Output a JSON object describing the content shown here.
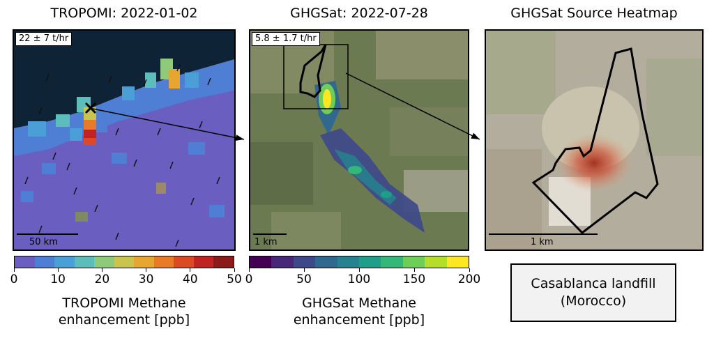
{
  "panels": {
    "tropomi": {
      "title": "TROPOMI: 2022-01-02",
      "rate": "22 ± 7 t/hr",
      "scale": "50 km"
    },
    "ghgsat": {
      "title": "GHGSat: 2022-07-28",
      "rate": "5.8 ± 1.7 t/hr",
      "scale": "1 km"
    },
    "heatmap": {
      "title": "GHGSat Source Heatmap",
      "scale": "1 km"
    }
  },
  "colorbars": {
    "tropomi": {
      "ticks": [
        "0",
        "10",
        "20",
        "30",
        "40",
        "50"
      ],
      "label_line1": "TROPOMI Methane",
      "label_line2": "enhancement [ppb]",
      "colors": [
        "#6a5fc1",
        "#4e7fd4",
        "#4aa0d6",
        "#5cbdbb",
        "#8fc97a",
        "#c9c44e",
        "#e6a630",
        "#e97a27",
        "#dc4a24",
        "#c12222",
        "#8b1a1a"
      ]
    },
    "ghgsat": {
      "ticks": [
        "0",
        "50",
        "100",
        "150",
        "200"
      ],
      "label_line1": "GHGSat Methane",
      "label_line2": "enhancement [ppb]",
      "colors": [
        "#440154",
        "#482878",
        "#3e4989",
        "#31688e",
        "#26828e",
        "#1f9e89",
        "#35b779",
        "#6ece58",
        "#b5de2b",
        "#fde725"
      ]
    }
  },
  "site": {
    "line1": "Casablanca landfill",
    "line2": "(Morocco)"
  },
  "colors": {
    "ocean": "#0e2436",
    "tropomi_bg": "#6a5fc1",
    "land": "#7f8a63",
    "heatmap_bg": "#b3ad9e"
  }
}
